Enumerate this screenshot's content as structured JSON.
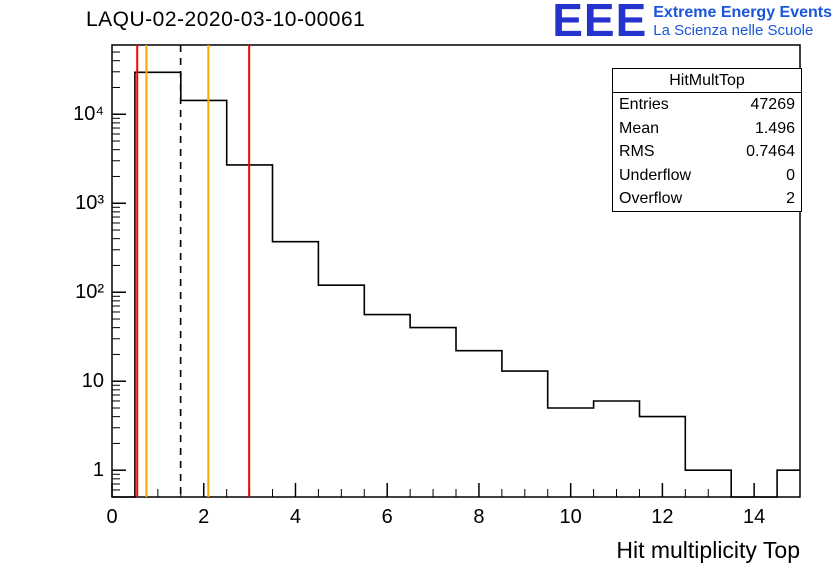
{
  "header": {
    "title": "LAQU-02-2020-03-10-00061"
  },
  "logo": {
    "eee": "EEE",
    "line1": "Extreme Energy Events",
    "line2": "La Scienza nelle Scuole",
    "eee_color": "#2433cc",
    "text_color": "#1a56db"
  },
  "stats": {
    "title": "HitMultTop",
    "rows": [
      {
        "label": "Entries",
        "value": "47269"
      },
      {
        "label": "Mean",
        "value": "1.496"
      },
      {
        "label": "RMS",
        "value": "0.7464"
      },
      {
        "label": "Underflow",
        "value": "0"
      },
      {
        "label": "Overflow",
        "value": "2"
      }
    ]
  },
  "chart_data": {
    "type": "bar",
    "subtype": "step-histogram",
    "title": "HitMultTop",
    "xlabel": "Hit multiplicity Top",
    "ylabel": "",
    "y_scale": "log",
    "x_range": [
      0,
      15
    ],
    "y_range": [
      0.5,
      60000
    ],
    "bin_width": 1,
    "bin_centers": [
      0,
      1,
      2,
      3,
      4,
      5,
      6,
      7,
      8,
      9,
      10,
      11,
      12,
      13,
      14,
      15
    ],
    "counts": [
      0,
      29600,
      14300,
      2700,
      370,
      120,
      56,
      40,
      22,
      13,
      5,
      6,
      4,
      1,
      0,
      1
    ],
    "line_color": "#000000",
    "x_ticks_major": [
      0,
      2,
      4,
      6,
      8,
      10,
      12,
      14
    ],
    "x_minor_step": 0.5,
    "y_ticks": [
      1,
      10,
      100,
      1000,
      10000
    ],
    "y_tick_labels": [
      "1",
      "10",
      "10²",
      "10³",
      "10⁴"
    ],
    "grid": false,
    "legend": "stats-box top-right",
    "markers": [
      {
        "x": 0.55,
        "color": "#ff0000",
        "style": "solid",
        "name": "red-cut-low"
      },
      {
        "x": 0.75,
        "color": "#ffa500",
        "style": "solid",
        "name": "orange-cut-low"
      },
      {
        "x": 1.496,
        "color": "#000000",
        "style": "dashed",
        "name": "mean-line"
      },
      {
        "x": 2.1,
        "color": "#ffa500",
        "style": "solid",
        "name": "orange-cut-high"
      },
      {
        "x": 2.99,
        "color": "#ff0000",
        "style": "solid",
        "name": "red-cut-high"
      }
    ]
  }
}
